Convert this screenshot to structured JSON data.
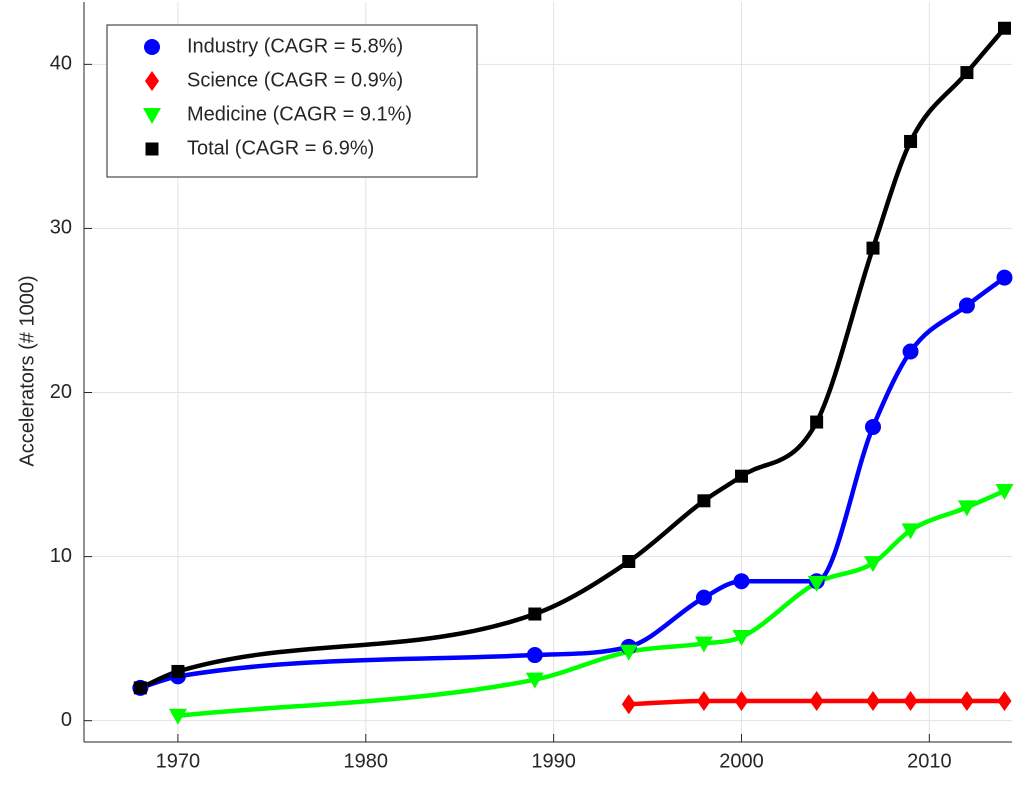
{
  "chart_data": {
    "type": "line",
    "y_label": "Accelerators (# 1000)",
    "xlim": [
      1965,
      2014.4
    ],
    "ylim": [
      -1.3,
      43.8
    ],
    "xticks": [
      1970,
      1980,
      1990,
      2000,
      2010
    ],
    "yticks": [
      0,
      10,
      20,
      30,
      40
    ],
    "grid": true,
    "legend": "upper left",
    "series": [
      {
        "name": "Industry (CAGR = 5.8%)",
        "color": "#0000ff",
        "marker": "circle",
        "x": [
          1968,
          1970,
          1989,
          1994,
          1998,
          2000,
          2004,
          2007,
          2009,
          2012,
          2014
        ],
        "values": [
          2.0,
          2.7,
          4.0,
          4.5,
          7.5,
          8.5,
          8.5,
          17.9,
          22.5,
          25.3,
          27.0
        ]
      },
      {
        "name": "Science (CAGR = 0.9%)",
        "color": "#ff0000",
        "marker": "diamond",
        "x": [
          1994,
          1998,
          2000,
          2004,
          2007,
          2009,
          2012,
          2014
        ],
        "values": [
          1.0,
          1.2,
          1.2,
          1.2,
          1.2,
          1.2,
          1.2,
          1.2
        ]
      },
      {
        "name": "Medicine (CAGR = 9.1%)",
        "color": "#00ff00",
        "marker": "triangle-down",
        "x": [
          1970,
          1989,
          1994,
          1998,
          2000,
          2004,
          2007,
          2009,
          2012,
          2014
        ],
        "values": [
          0.3,
          2.5,
          4.2,
          4.7,
          5.1,
          8.4,
          9.6,
          11.6,
          13.0,
          14.0
        ]
      },
      {
        "name": "Total (CAGR = 6.9%)",
        "color": "#000000",
        "marker": "square",
        "x": [
          1968,
          1970,
          1989,
          1994,
          1998,
          2000,
          2004,
          2007,
          2009,
          2012,
          2014
        ],
        "values": [
          2.0,
          3.0,
          6.5,
          9.7,
          13.4,
          14.9,
          18.2,
          28.8,
          35.3,
          39.5,
          42.2
        ]
      }
    ]
  }
}
